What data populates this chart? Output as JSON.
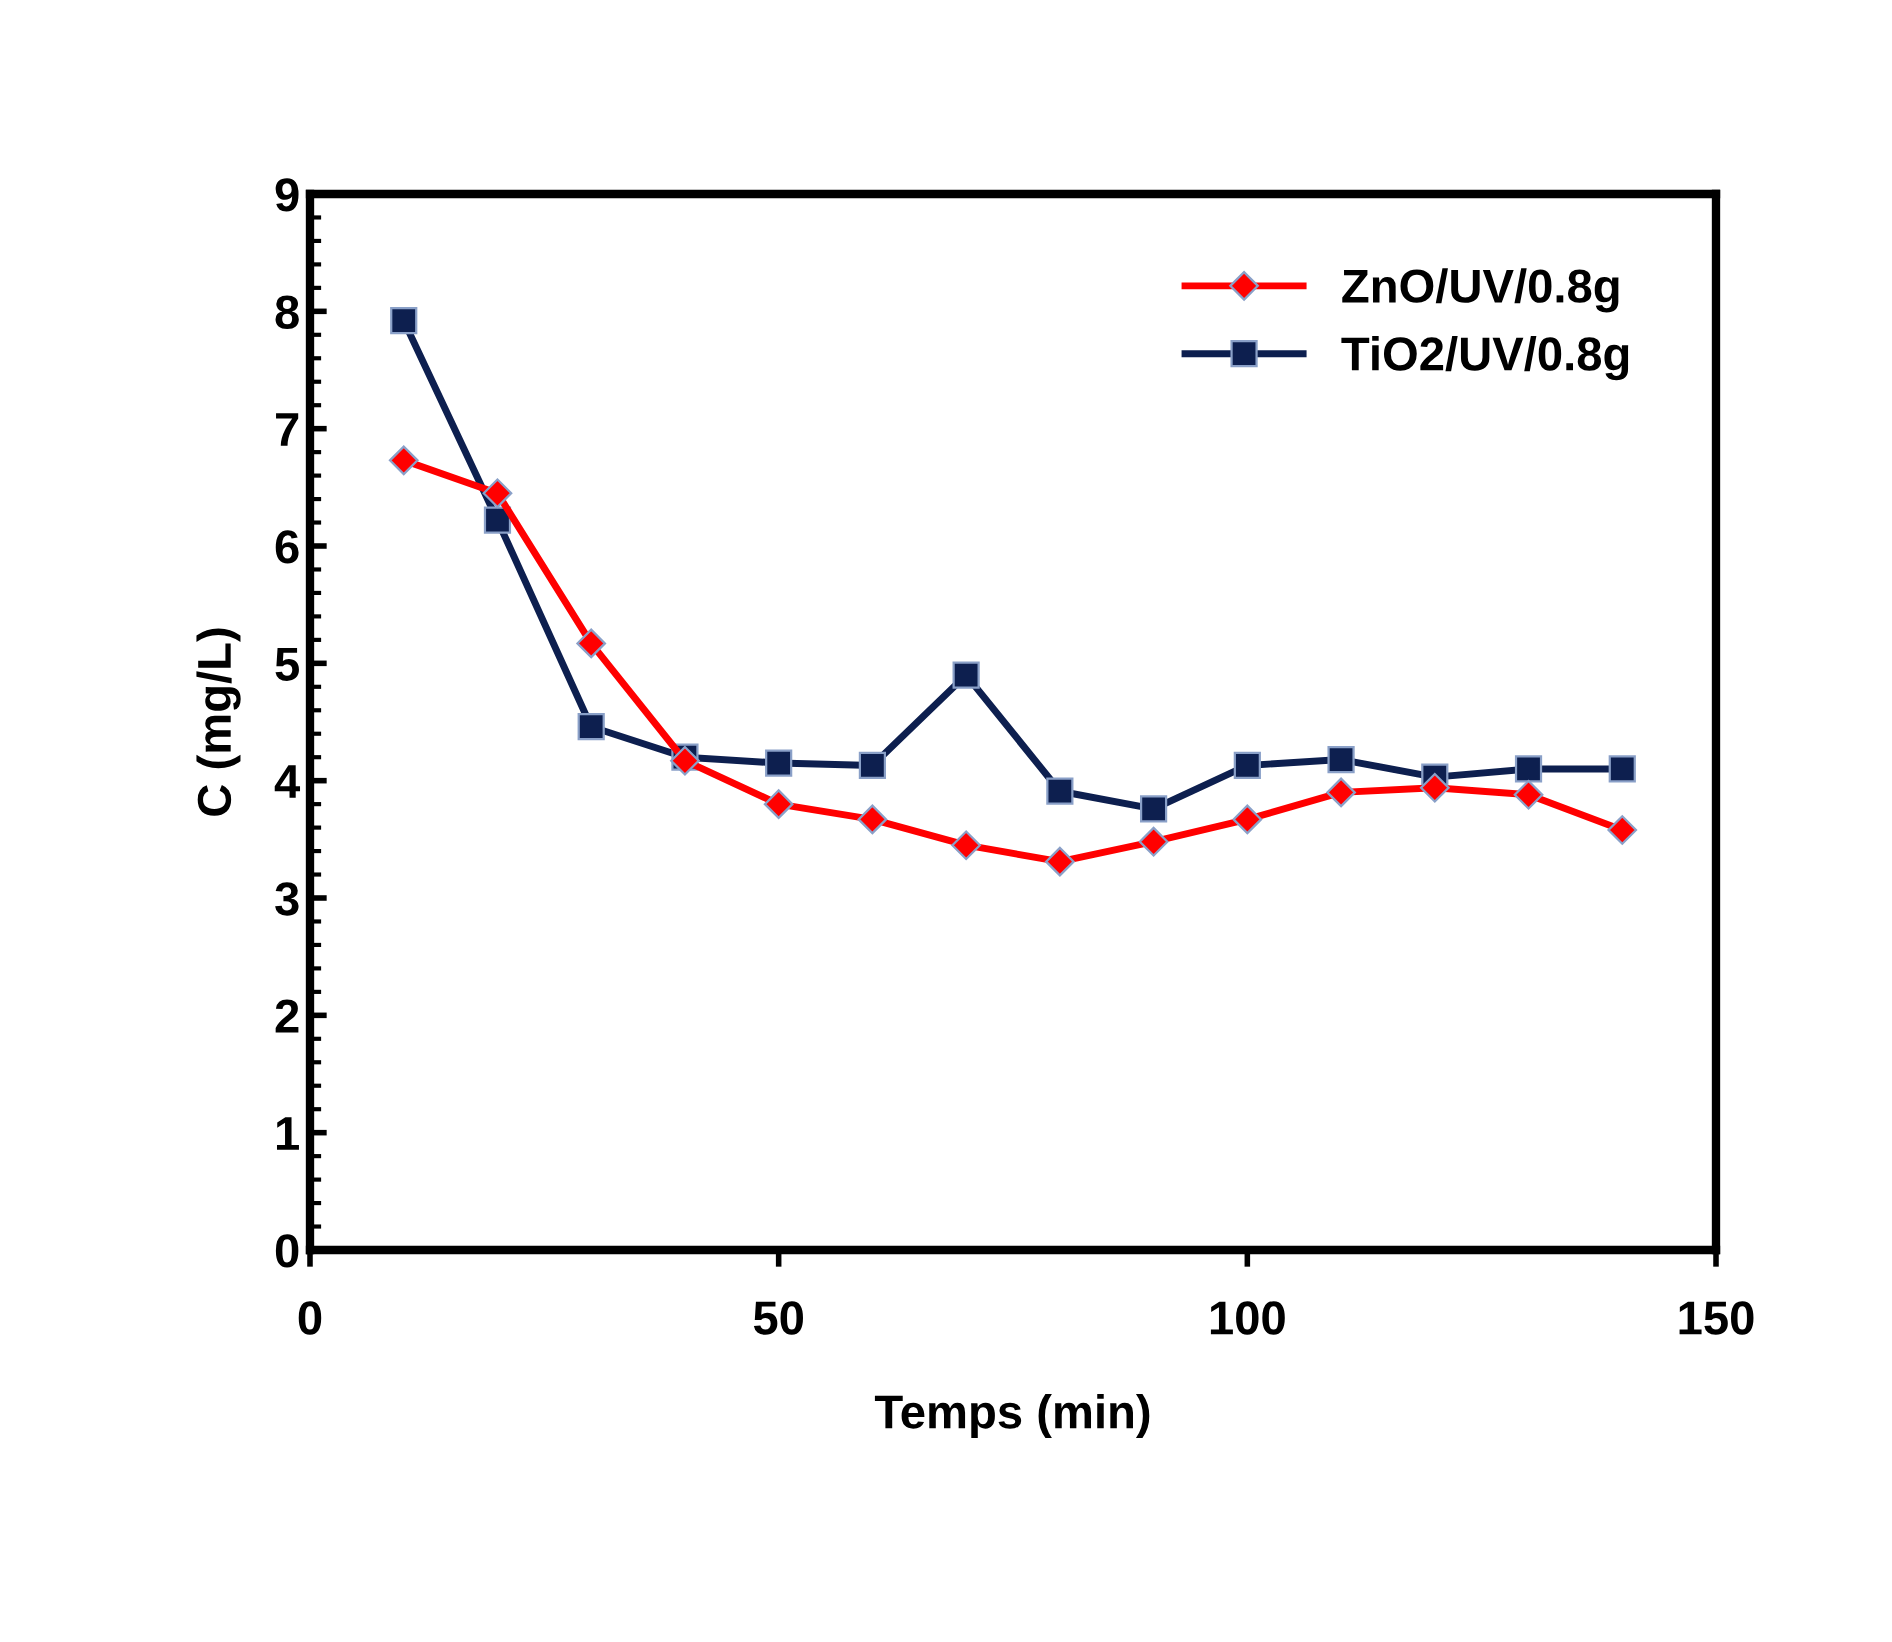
{
  "chart_data": {
    "type": "line",
    "xlabel": "Temps (min)",
    "ylabel": "C (mg/L)",
    "x": [
      10,
      20,
      30,
      40,
      50,
      60,
      70,
      80,
      90,
      100,
      110,
      120,
      130,
      140
    ],
    "series": [
      {
        "name": "ZnO/UV/0.8g",
        "color": "#ff0000",
        "marker": "diamond",
        "values": [
          6.73,
          6.45,
          5.17,
          4.17,
          3.8,
          3.67,
          3.45,
          3.31,
          3.48,
          3.67,
          3.9,
          3.94,
          3.88,
          3.58
        ]
      },
      {
        "name": "TiO2/UV/0.8g",
        "color": "#0d1f4f",
        "marker": "square",
        "values": [
          7.92,
          6.22,
          4.46,
          4.2,
          4.15,
          4.13,
          4.9,
          3.91,
          3.76,
          4.13,
          4.18,
          4.03,
          4.1,
          4.1
        ]
      }
    ],
    "xlim": [
      0,
      150
    ],
    "xticks": [
      0,
      50,
      100,
      150
    ],
    "ylim": [
      0,
      9
    ],
    "yticks": [
      0,
      1,
      2,
      3,
      4,
      5,
      6,
      7,
      8,
      9
    ],
    "grid": false,
    "legend": "top right",
    "line_style": "solid"
  }
}
